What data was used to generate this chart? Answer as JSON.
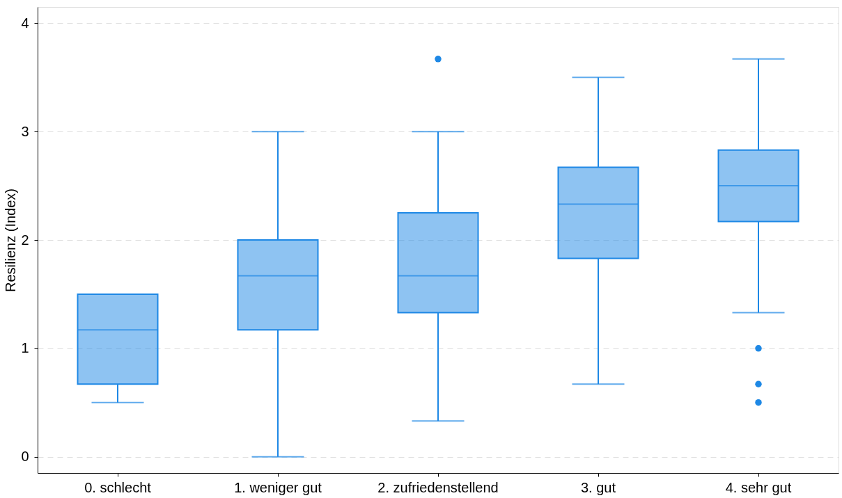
{
  "chart_data": {
    "type": "box",
    "ylabel": "Resilienz (Index)",
    "categories": [
      "0. schlecht",
      "1. weniger gut",
      "2. zufriedenstellend",
      "3. gut",
      "4. sehr gut"
    ],
    "ylim": [
      -0.15,
      4.15
    ],
    "yticks": [
      0,
      1,
      2,
      3,
      4
    ],
    "grid": "y",
    "series": [
      {
        "color": "#1e88e5",
        "boxes": [
          {
            "low": 0.5,
            "q1": 0.67,
            "median": 1.17,
            "q3": 1.5,
            "high": 1.5
          },
          {
            "low": 0,
            "q1": 1.17,
            "median": 1.67,
            "q3": 2,
            "high": 3
          },
          {
            "low": 0.33,
            "q1": 1.33,
            "median": 1.67,
            "q3": 2.25,
            "high": 3,
            "outliers": [
              3.67
            ]
          },
          {
            "low": 0.67,
            "q1": 1.83,
            "median": 2.33,
            "q3": 2.67,
            "high": 3.5
          },
          {
            "low": 1.33,
            "q1": 2.17,
            "median": 2.5,
            "q3": 2.83,
            "high": 3.67,
            "outliers": [
              1,
              0.67,
              0.5
            ]
          }
        ]
      }
    ]
  }
}
